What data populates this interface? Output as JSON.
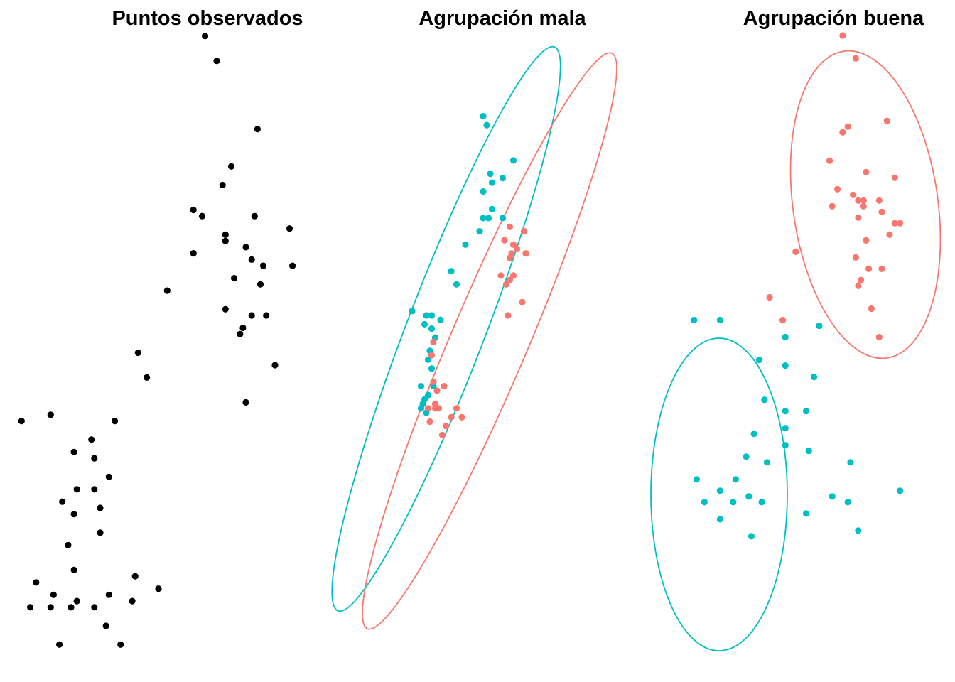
{
  "chart_data": [
    {
      "type": "scatter",
      "title": "Puntos observados",
      "xlabel": "",
      "ylabel": "",
      "grid": false,
      "legend": "none",
      "xlim": [
        0,
        100
      ],
      "ylim": [
        0,
        100
      ],
      "series": [
        {
          "color": "#000000",
          "points": [
            [
              66,
              99
            ],
            [
              70,
              95
            ],
            [
              84,
              84
            ],
            [
              75,
              78
            ],
            [
              72,
              75
            ],
            [
              62,
              71
            ],
            [
              65,
              70
            ],
            [
              83,
              70
            ],
            [
              95,
              68
            ],
            [
              73,
              67
            ],
            [
              73,
              66
            ],
            [
              80,
              65
            ],
            [
              62,
              64
            ],
            [
              82,
              63
            ],
            [
              86,
              62
            ],
            [
              96,
              62
            ],
            [
              76,
              60
            ],
            [
              85,
              59
            ],
            [
              53,
              58
            ],
            [
              73,
              55
            ],
            [
              87,
              54
            ],
            [
              82,
              54
            ],
            [
              79,
              52
            ],
            [
              78,
              51
            ],
            [
              43,
              48
            ],
            [
              90,
              46
            ],
            [
              46,
              44
            ],
            [
              80,
              40
            ],
            [
              13,
              38
            ],
            [
              3,
              37
            ],
            [
              35,
              37
            ],
            [
              27,
              34
            ],
            [
              21,
              32
            ],
            [
              28,
              31
            ],
            [
              33,
              28
            ],
            [
              22,
              26
            ],
            [
              17,
              24
            ],
            [
              28,
              26
            ],
            [
              30,
              23
            ],
            [
              21,
              22
            ],
            [
              30,
              19
            ],
            [
              19,
              17
            ],
            [
              21,
              13
            ],
            [
              8,
              11
            ],
            [
              42,
              12
            ],
            [
              50,
              10
            ],
            [
              14,
              9
            ],
            [
              33,
              9
            ],
            [
              41,
              8
            ],
            [
              22,
              8
            ],
            [
              6,
              7
            ],
            [
              13,
              7
            ],
            [
              20,
              7
            ],
            [
              28,
              7
            ],
            [
              32,
              4
            ],
            [
              16,
              1
            ],
            [
              37,
              1
            ]
          ]
        }
      ]
    },
    {
      "type": "scatter",
      "title": "Agrupación mala",
      "xlabel": "",
      "ylabel": "",
      "grid": false,
      "legend": "none",
      "xlim": [
        0,
        100
      ],
      "ylim": [
        0,
        100
      ],
      "series": [
        {
          "color": "#00BFC4",
          "points": [
            [
              60,
              93
            ],
            [
              62,
              91
            ],
            [
              77,
              83
            ],
            [
              64,
              80
            ],
            [
              71,
              79
            ],
            [
              65,
              78
            ],
            [
              60,
              76
            ],
            [
              60,
              70
            ],
            [
              63,
              70
            ],
            [
              65,
              72
            ],
            [
              71,
              70
            ],
            [
              58,
              67
            ],
            [
              50,
              64
            ],
            [
              42,
              58
            ],
            [
              45,
              55
            ],
            [
              20,
              49
            ],
            [
              28,
              48
            ],
            [
              36,
              47
            ],
            [
              31,
              48
            ],
            [
              27,
              46
            ],
            [
              31,
              45
            ],
            [
              33,
              43
            ],
            [
              30,
              40
            ],
            [
              29,
              38
            ],
            [
              31,
              36
            ],
            [
              32,
              32
            ],
            [
              25,
              32
            ],
            [
              29,
              30
            ],
            [
              27,
              29
            ],
            [
              25,
              27
            ],
            [
              26,
              28
            ],
            [
              28,
              26
            ]
          ]
        },
        {
          "color": "#F8766D",
          "points": [
            [
              75,
              68
            ],
            [
              83,
              67
            ],
            [
              72,
              65
            ],
            [
              77,
              64
            ],
            [
              76,
              62
            ],
            [
              79,
              63
            ],
            [
              84,
              62
            ],
            [
              75,
              61
            ],
            [
              70,
              57
            ],
            [
              77,
              57
            ],
            [
              73,
              55
            ],
            [
              75,
              56
            ],
            [
              82,
              51
            ],
            [
              74,
              48
            ],
            [
              32,
              42
            ],
            [
              31,
              39
            ],
            [
              32,
              33
            ],
            [
              38,
              32
            ],
            [
              34,
              31
            ],
            [
              33,
              28
            ],
            [
              29,
              27
            ],
            [
              33,
              27
            ],
            [
              35,
              27
            ],
            [
              45,
              27
            ],
            [
              48,
              25
            ],
            [
              42,
              25
            ],
            [
              30,
              24
            ],
            [
              39,
              23
            ],
            [
              37,
              21
            ]
          ]
        }
      ]
    },
    {
      "type": "scatter",
      "title": "Agrupación buena",
      "xlabel": "",
      "ylabel": "",
      "grid": false,
      "legend": "none",
      "xlim": [
        0,
        100
      ],
      "ylim": [
        0,
        100
      ],
      "series": [
        {
          "color": "#00BFC4",
          "points": [
            [
              13,
              49
            ],
            [
              23,
              49
            ],
            [
              61,
              48
            ],
            [
              48,
              46
            ],
            [
              38,
              42
            ],
            [
              48,
              41
            ],
            [
              59,
              39
            ],
            [
              40,
              35
            ],
            [
              56,
              33
            ],
            [
              48,
              33
            ],
            [
              48,
              30
            ],
            [
              36,
              29
            ],
            [
              48,
              27
            ],
            [
              57,
              26
            ],
            [
              33,
              25
            ],
            [
              73,
              24
            ],
            [
              41,
              24
            ],
            [
              14,
              21
            ],
            [
              29,
              21
            ],
            [
              23,
              19
            ],
            [
              92,
              19
            ],
            [
              34,
              18
            ],
            [
              66,
              18
            ],
            [
              72,
              17
            ],
            [
              39,
              17
            ],
            [
              28,
              17
            ],
            [
              17,
              17
            ],
            [
              56,
              15
            ],
            [
              23,
              14
            ],
            [
              76,
              12
            ],
            [
              35,
              11
            ]
          ]
        },
        {
          "color": "#F8766D",
          "points": [
            [
              70,
              99
            ],
            [
              75,
              95
            ],
            [
              87,
              84
            ],
            [
              72,
              83
            ],
            [
              70,
              82
            ],
            [
              65,
              77
            ],
            [
              79,
              75
            ],
            [
              90,
              74
            ],
            [
              68,
              72
            ],
            [
              74,
              71
            ],
            [
              84,
              70
            ],
            [
              76,
              70
            ],
            [
              78,
              70
            ],
            [
              66,
              69
            ],
            [
              78,
              69
            ],
            [
              76,
              67
            ],
            [
              85,
              68
            ],
            [
              90,
              66
            ],
            [
              92,
              66
            ],
            [
              79,
              63
            ],
            [
              88,
              64
            ],
            [
              52,
              61
            ],
            [
              75,
              60
            ],
            [
              80,
              58
            ],
            [
              85,
              58
            ],
            [
              77,
              56
            ],
            [
              76,
              55
            ],
            [
              42,
              53
            ],
            [
              81,
              51
            ],
            [
              47,
              49
            ],
            [
              84,
              46
            ]
          ]
        }
      ]
    }
  ]
}
